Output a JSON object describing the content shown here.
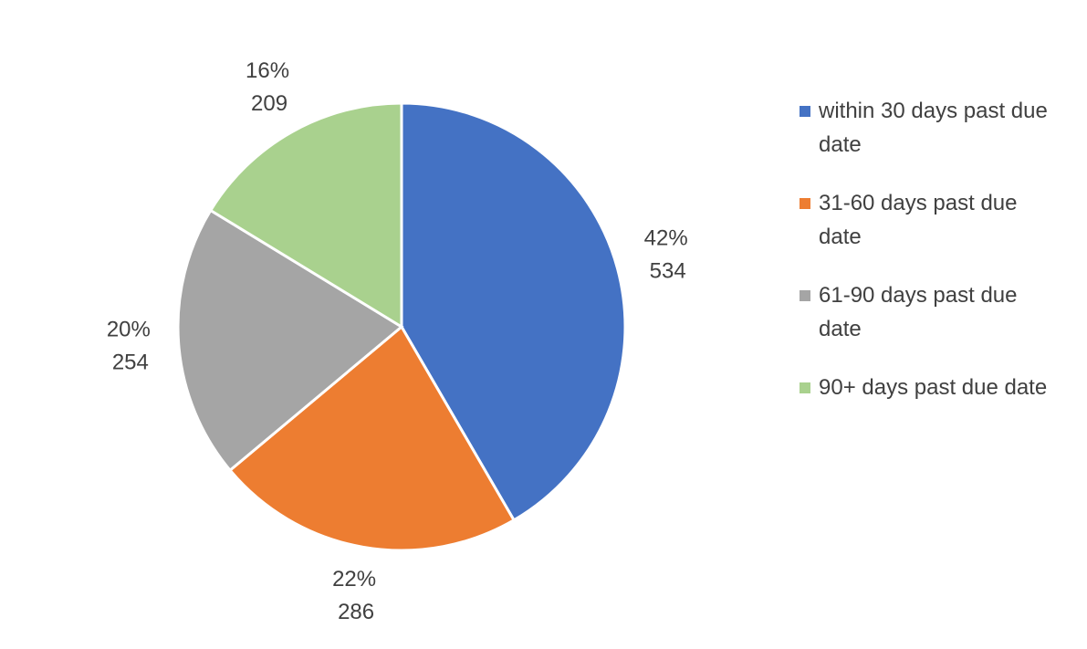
{
  "chart_data": {
    "type": "pie",
    "categories": [
      "within 30 days past due date",
      "31-60 days past due date",
      "61-90 days past due date",
      "90+ days past due date"
    ],
    "values": [
      534,
      286,
      254,
      209
    ],
    "percent_labels": [
      "42%",
      "22%",
      "20%",
      "16%"
    ],
    "colors": [
      "#4472c4",
      "#ed7d31",
      "#a5a5a5",
      "#a9d18e"
    ],
    "legend": "right"
  }
}
